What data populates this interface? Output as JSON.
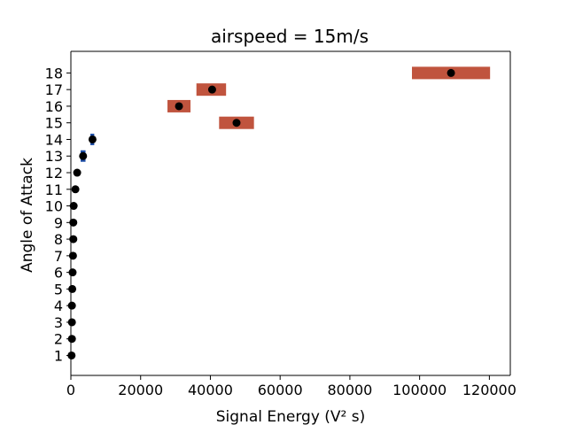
{
  "chart_data": {
    "type": "scatter",
    "title": "airspeed = 15m/s",
    "xlabel": "Signal Energy (V² s)",
    "ylabel": "Angle of Attack",
    "xlim": [
      0,
      126000
    ],
    "ylim": [
      -0.2,
      19.3
    ],
    "xticks": [
      0,
      20000,
      40000,
      60000,
      80000,
      100000,
      120000
    ],
    "yticks": [
      1,
      2,
      3,
      4,
      5,
      6,
      7,
      8,
      9,
      10,
      11,
      12,
      13,
      14,
      15,
      16,
      17,
      18
    ],
    "grid": false,
    "colors": {
      "point": "#000000",
      "range_box": "#c0543e",
      "error_bar": "#1f4fa8"
    },
    "series": [
      {
        "points": [
          {
            "y": 1,
            "x": 200
          },
          {
            "y": 2,
            "x": 300
          },
          {
            "y": 3,
            "x": 300
          },
          {
            "y": 4,
            "x": 300
          },
          {
            "y": 5,
            "x": 400
          },
          {
            "y": 6,
            "x": 500
          },
          {
            "y": 7,
            "x": 600
          },
          {
            "y": 8,
            "x": 700
          },
          {
            "y": 9,
            "x": 700
          },
          {
            "y": 10,
            "x": 800
          },
          {
            "y": 11,
            "x": 1300
          },
          {
            "y": 12,
            "x": 1800
          },
          {
            "y": 13,
            "x": 3500,
            "err_low": 2800,
            "err_high": 4200,
            "err_color": "error_bar"
          },
          {
            "y": 14,
            "x": 6200,
            "err_low": 5600,
            "err_high": 6700,
            "err_color": "error_bar"
          },
          {
            "y": 15,
            "x": 47500,
            "err_low": 42500,
            "err_high": 52500,
            "err_color": "range_box"
          },
          {
            "y": 16,
            "x": 31000,
            "err_low": 27700,
            "err_high": 34300,
            "err_color": "range_box"
          },
          {
            "y": 17,
            "x": 40500,
            "err_low": 36000,
            "err_high": 44500,
            "err_color": "range_box"
          },
          {
            "y": 18,
            "x": 109000,
            "err_low": 97800,
            "err_high": 120200,
            "err_color": "range_box"
          }
        ]
      }
    ]
  }
}
